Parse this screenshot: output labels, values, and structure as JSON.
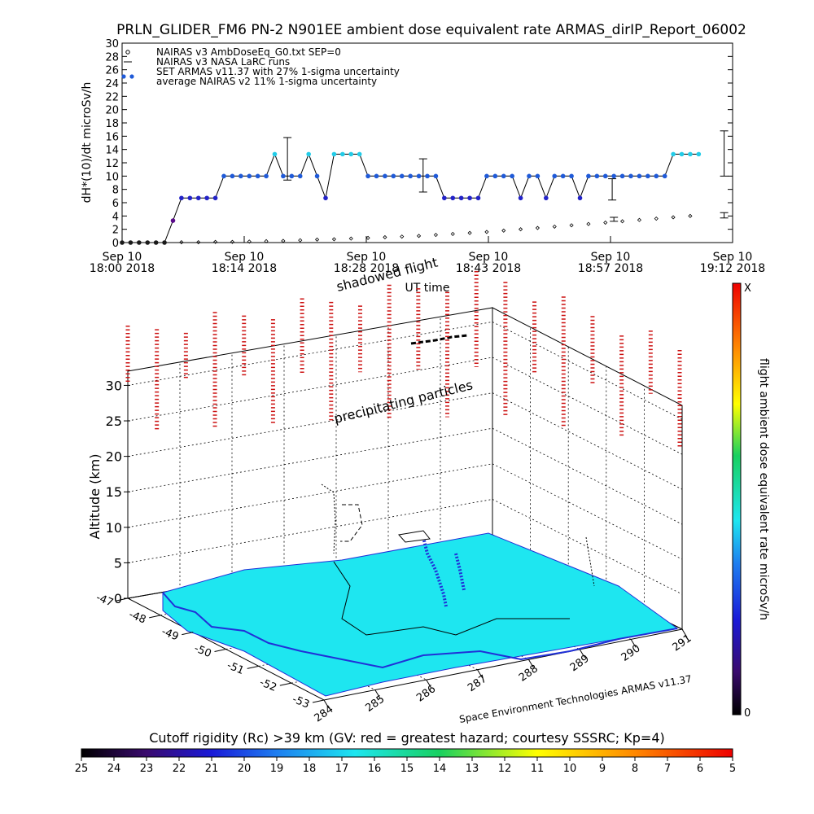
{
  "page": {
    "title": "PRLN_GLIDER_FM6 PN-2 N901EE ambient dose equivalent rate ARMAS_dirIP_Report_06002"
  },
  "chart_data": [
    {
      "type": "scatter",
      "title": "PRLN_GLIDER_FM6 PN-2 N901EE ambient dose equivalent rate ARMAS_dirIP_Report_06002",
      "ylabel": "dH*(10)/dt microSv/h",
      "xlabel": "UT time",
      "ylim": [
        0,
        30
      ],
      "yticks": [
        0,
        2,
        4,
        6,
        8,
        10,
        12,
        14,
        16,
        18,
        20,
        22,
        24,
        26,
        28,
        30
      ],
      "xticks": [
        {
          "line1": "Sep 10",
          "line2": "18:00 2018"
        },
        {
          "line1": "Sep 10",
          "line2": "18:14 2018"
        },
        {
          "line1": "Sep 10",
          "line2": "18:28 2018"
        },
        {
          "line1": "Sep 10",
          "line2": "18:43 2018"
        },
        {
          "line1": "Sep 10",
          "line2": "18:57 2018"
        },
        {
          "line1": "Sep 10",
          "line2": "19:12 2018"
        }
      ],
      "legend": [
        "NAIRAS v3 AmbDoseEq_G0.txt SEP=0",
        "NAIRAS v3 NASA LaRC runs",
        "SET ARMAS v11.37 with 27% 1-sigma uncertainty",
        "average NAIRAS v2 11% 1-sigma uncertainty"
      ],
      "legend_position": "top-left",
      "series": [
        {
          "x_minutes": [
            0,
            1,
            2,
            3,
            4,
            5,
            6,
            7,
            8,
            9,
            10,
            11,
            12,
            13,
            14,
            15,
            16,
            17,
            18,
            19,
            20,
            21,
            22,
            23,
            24,
            25,
            26,
            27,
            28,
            29,
            30,
            31,
            32,
            33,
            34,
            35,
            36,
            37,
            38,
            39,
            40,
            41,
            42,
            43,
            44,
            45,
            46,
            47,
            48,
            49,
            50,
            51,
            52,
            53,
            54,
            55,
            56,
            57,
            58,
            59,
            60,
            61,
            62,
            63,
            64,
            65,
            66,
            67,
            68
          ],
          "values": [
            0,
            0,
            0,
            0,
            0,
            0,
            3.3,
            6.7,
            6.7,
            6.7,
            6.7,
            6.7,
            10,
            10,
            10,
            10,
            10,
            10,
            13.3,
            10,
            10,
            10,
            13.3,
            10,
            6.7,
            13.3,
            13.3,
            13.3,
            13.3,
            10,
            10,
            10,
            10,
            10,
            10,
            10,
            10,
            10,
            6.7,
            6.7,
            6.7,
            6.7,
            6.7,
            10,
            10,
            10,
            10,
            6.7,
            10,
            10,
            6.7,
            10,
            10,
            10,
            6.7,
            10,
            10,
            10,
            10,
            10,
            10,
            10,
            10,
            10,
            10,
            13.3,
            13.3,
            13.3,
            13.3
          ]
        },
        {
          "x_minutes": [
            1,
            3,
            5,
            7,
            9,
            11,
            13,
            15,
            17,
            19,
            21,
            23,
            25,
            27,
            29,
            31,
            33,
            35,
            37,
            39,
            41,
            43,
            45,
            47,
            49,
            51,
            53,
            55,
            57,
            59,
            61,
            63,
            65,
            67
          ],
          "values": [
            0,
            0,
            0,
            0.05,
            0.05,
            0.1,
            0.1,
            0.15,
            0.2,
            0.25,
            0.35,
            0.45,
            0.5,
            0.6,
            0.7,
            0.8,
            0.9,
            1.0,
            1.15,
            1.3,
            1.45,
            1.6,
            1.8,
            2.0,
            2.2,
            2.4,
            2.6,
            2.8,
            3.0,
            3.2,
            3.4,
            3.6,
            3.8,
            4.0
          ]
        }
      ],
      "error_bars": [
        {
          "x_minutes": 19.5,
          "value": 12.6,
          "low": 9.4,
          "high": 15.8
        },
        {
          "x_minutes": 35.5,
          "value": 10.0,
          "low": 7.6,
          "high": 12.6
        },
        {
          "x_minutes": 57.8,
          "value": 7.9,
          "low": 6.4,
          "high": 9.6
        },
        {
          "x_minutes": 71,
          "value": 13.3,
          "low": 10.0,
          "high": 16.8
        },
        {
          "x_minutes": 58,
          "value": 3.5,
          "low": 3.2,
          "high": 3.8
        },
        {
          "x_minutes": 71,
          "value": 4.1,
          "low": 3.7,
          "high": 4.5
        }
      ]
    },
    {
      "type": "other",
      "zlabel": "Altitude (km)",
      "zticks": [
        "0",
        "5",
        "10",
        "15",
        "20",
        "25",
        "30"
      ],
      "lat_ticks": [
        "-47",
        "-48",
        "-49",
        "-50",
        "-51",
        "-52",
        "-53"
      ],
      "lon_ticks": [
        "284",
        "285",
        "286",
        "287",
        "288",
        "289",
        "290",
        "291"
      ],
      "annotations": [
        "shadowed flight",
        "precipitating particles",
        "Space Environment Technologies ARMAS v11.37"
      ],
      "colorbar_label": "flight ambient dose equivalent rate microSv/h",
      "colorbar_top": "X",
      "colorbar_bottom": "0",
      "colors": {
        "ocean": "#1ee6f0",
        "coast": "#2030d8",
        "particles": "#cc1010"
      }
    },
    {
      "type": "colorbar",
      "title": "Cutoff rigidity (Rc) >39 km (GV: red = greatest hazard; courtesy SSSRC; Kp=4)",
      "labels": [
        "25",
        "24",
        "23",
        "22",
        "21",
        "20",
        "19",
        "18",
        "17",
        "16",
        "15",
        "14",
        "13",
        "12",
        "11",
        "10",
        "9",
        "8",
        "7",
        "6",
        "5"
      ]
    }
  ]
}
